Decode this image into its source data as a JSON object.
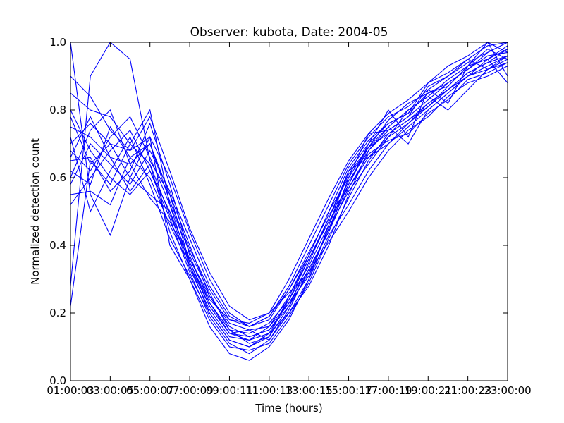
{
  "chart_data": {
    "type": "line",
    "title": "Observer: kubota, Date: 2004-05",
    "xlabel": "Time (hours)",
    "ylabel": "Normalized detection count",
    "xlim": [
      1,
      23
    ],
    "ylim": [
      0,
      1
    ],
    "x_ticks": [
      {
        "value": 1,
        "label": "01:00:03"
      },
      {
        "value": 3,
        "label": "03:00:05"
      },
      {
        "value": 5,
        "label": "05:00:07"
      },
      {
        "value": 7,
        "label": "07:00:09"
      },
      {
        "value": 9,
        "label": "09:00:11"
      },
      {
        "value": 11,
        "label": "11:00:13"
      },
      {
        "value": 13,
        "label": "13:00:15"
      },
      {
        "value": 15,
        "label": "15:00:17"
      },
      {
        "value": 17,
        "label": "17:00:19"
      },
      {
        "value": 19,
        "label": "19:00:21"
      },
      {
        "value": 21,
        "label": "21:00:23"
      },
      {
        "value": 23,
        "label": "23:00:00"
      }
    ],
    "y_ticks": [
      {
        "value": 0.0,
        "label": "0.0"
      },
      {
        "value": 0.2,
        "label": "0.2"
      },
      {
        "value": 0.4,
        "label": "0.4"
      },
      {
        "value": 0.6,
        "label": "0.6"
      },
      {
        "value": 0.8,
        "label": "0.8"
      },
      {
        "value": 1.0,
        "label": "1.0"
      }
    ],
    "grid": false,
    "line_color": "#0000ff",
    "x": [
      1,
      2,
      3,
      4,
      5,
      6,
      7,
      8,
      9,
      10,
      11,
      12,
      13,
      14,
      15,
      16,
      17,
      18,
      19,
      20,
      21,
      22,
      23
    ],
    "series": [
      {
        "values": [
          1.0,
          0.55,
          0.43,
          0.6,
          0.72,
          0.4,
          0.3,
          0.16,
          0.08,
          0.06,
          0.1,
          0.18,
          0.3,
          0.46,
          0.62,
          0.7,
          0.8,
          0.72,
          0.86,
          0.82,
          0.93,
          1.0,
          0.9
        ]
      },
      {
        "values": [
          0.28,
          0.9,
          1.0,
          0.95,
          0.65,
          0.55,
          0.35,
          0.22,
          0.14,
          0.15,
          0.12,
          0.2,
          0.28,
          0.4,
          0.55,
          0.68,
          0.75,
          0.7,
          0.8,
          0.85,
          0.9,
          0.95,
          0.88
        ]
      },
      {
        "values": [
          0.22,
          0.65,
          0.58,
          0.7,
          0.8,
          0.52,
          0.34,
          0.2,
          0.12,
          0.1,
          0.14,
          0.24,
          0.36,
          0.47,
          0.58,
          0.69,
          0.77,
          0.82,
          0.85,
          0.88,
          0.92,
          0.97,
          1.0
        ]
      },
      {
        "values": [
          0.8,
          0.68,
          0.6,
          0.55,
          0.62,
          0.48,
          0.32,
          0.19,
          0.11,
          0.08,
          0.12,
          0.21,
          0.33,
          0.44,
          0.6,
          0.73,
          0.74,
          0.78,
          0.87,
          0.9,
          0.95,
          0.92,
          0.96
        ]
      },
      {
        "values": [
          0.75,
          0.72,
          0.66,
          0.64,
          0.7,
          0.55,
          0.4,
          0.25,
          0.16,
          0.13,
          0.15,
          0.22,
          0.35,
          0.48,
          0.62,
          0.66,
          0.7,
          0.76,
          0.82,
          0.86,
          0.91,
          0.94,
          0.98
        ]
      },
      {
        "values": [
          0.7,
          0.76,
          0.7,
          0.6,
          0.55,
          0.5,
          0.36,
          0.24,
          0.18,
          0.17,
          0.2,
          0.26,
          0.32,
          0.41,
          0.5,
          0.6,
          0.68,
          0.74,
          0.78,
          0.84,
          0.88,
          0.9,
          0.93
        ]
      },
      {
        "values": [
          0.62,
          0.58,
          0.75,
          0.66,
          0.6,
          0.46,
          0.34,
          0.22,
          0.14,
          0.12,
          0.16,
          0.23,
          0.31,
          0.45,
          0.56,
          0.64,
          0.72,
          0.8,
          0.84,
          0.8,
          0.86,
          0.92,
          0.95
        ]
      },
      {
        "values": [
          0.68,
          0.62,
          0.72,
          0.78,
          0.66,
          0.52,
          0.38,
          0.26,
          0.15,
          0.11,
          0.13,
          0.25,
          0.37,
          0.5,
          0.63,
          0.71,
          0.76,
          0.79,
          0.88,
          0.93,
          0.96,
          1.0,
          0.97
        ]
      },
      {
        "values": [
          0.85,
          0.8,
          0.78,
          0.7,
          0.64,
          0.44,
          0.3,
          0.18,
          0.1,
          0.09,
          0.11,
          0.19,
          0.29,
          0.42,
          0.54,
          0.65,
          0.73,
          0.77,
          0.81,
          0.87,
          0.93,
          0.95,
          0.99
        ]
      },
      {
        "values": [
          0.58,
          0.7,
          0.64,
          0.58,
          0.68,
          0.56,
          0.42,
          0.28,
          0.19,
          0.16,
          0.18,
          0.27,
          0.38,
          0.49,
          0.57,
          0.67,
          0.71,
          0.73,
          0.79,
          0.83,
          0.89,
          0.91,
          0.94
        ]
      },
      {
        "values": [
          0.9,
          0.84,
          0.74,
          0.68,
          0.72,
          0.6,
          0.44,
          0.3,
          0.2,
          0.16,
          0.19,
          0.28,
          0.4,
          0.52,
          0.64,
          0.72,
          0.78,
          0.81,
          0.86,
          0.9,
          0.94,
          0.97,
          1.0
        ]
      },
      {
        "values": [
          0.52,
          0.6,
          0.68,
          0.74,
          0.62,
          0.5,
          0.33,
          0.21,
          0.13,
          0.12,
          0.14,
          0.2,
          0.3,
          0.43,
          0.52,
          0.62,
          0.7,
          0.75,
          0.8,
          0.85,
          0.9,
          0.93,
          0.96
        ]
      },
      {
        "values": [
          0.65,
          0.66,
          0.56,
          0.62,
          0.76,
          0.58,
          0.37,
          0.23,
          0.15,
          0.14,
          0.17,
          0.24,
          0.34,
          0.46,
          0.59,
          0.68,
          0.74,
          0.78,
          0.83,
          0.88,
          0.92,
          0.96,
          0.97
        ]
      },
      {
        "values": [
          0.72,
          0.5,
          0.62,
          0.72,
          0.58,
          0.42,
          0.31,
          0.2,
          0.12,
          0.1,
          0.13,
          0.22,
          0.32,
          0.45,
          0.58,
          0.7,
          0.76,
          0.79,
          0.85,
          0.87,
          0.93,
          0.98,
          0.95
        ]
      },
      {
        "values": [
          0.6,
          0.74,
          0.8,
          0.64,
          0.54,
          0.47,
          0.36,
          0.25,
          0.17,
          0.15,
          0.16,
          0.25,
          0.36,
          0.48,
          0.61,
          0.69,
          0.73,
          0.77,
          0.82,
          0.86,
          0.9,
          0.92,
          0.94
        ]
      },
      {
        "values": [
          0.78,
          0.64,
          0.7,
          0.68,
          0.78,
          0.62,
          0.45,
          0.32,
          0.22,
          0.18,
          0.2,
          0.3,
          0.42,
          0.54,
          0.65,
          0.73,
          0.79,
          0.83,
          0.88,
          0.91,
          0.95,
          0.99,
          1.0
        ]
      },
      {
        "values": [
          0.55,
          0.56,
          0.52,
          0.66,
          0.7,
          0.53,
          0.39,
          0.27,
          0.18,
          0.16,
          0.19,
          0.27,
          0.37,
          0.5,
          0.6,
          0.69,
          0.75,
          0.8,
          0.84,
          0.89,
          0.93,
          0.95,
          0.98
        ]
      },
      {
        "values": [
          0.66,
          0.78,
          0.66,
          0.56,
          0.64,
          0.49,
          0.35,
          0.23,
          0.14,
          0.13,
          0.15,
          0.23,
          0.33,
          0.44,
          0.57,
          0.66,
          0.72,
          0.76,
          0.81,
          0.86,
          0.91,
          0.94,
          0.96
        ]
      }
    ]
  }
}
